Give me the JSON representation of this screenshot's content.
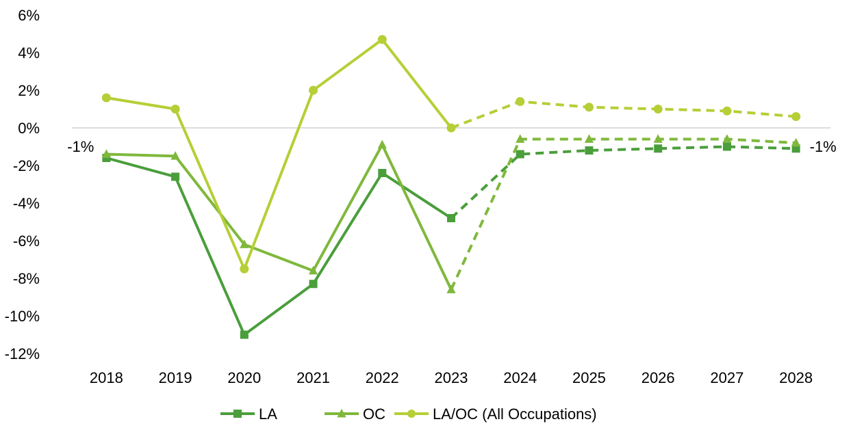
{
  "chart_data": {
    "type": "line",
    "title": "",
    "xlabel": "",
    "ylabel": "",
    "categories": [
      "2018",
      "2019",
      "2020",
      "2021",
      "2022",
      "2023",
      "2024",
      "2025",
      "2026",
      "2027",
      "2028"
    ],
    "ylim": [
      -12,
      6
    ],
    "yticks": [
      6,
      4,
      2,
      0,
      -2,
      -4,
      -6,
      -8,
      -10,
      -12
    ],
    "ytick_labels": [
      "6%",
      "4%",
      "2%",
      "0%",
      "-2%",
      "-4%",
      "-6%",
      "-8%",
      "-10%",
      "-12%"
    ],
    "grid": false,
    "zero_line": true,
    "projection_start_index": 5,
    "series": [
      {
        "name": "LA",
        "marker": "square",
        "color": "#4a9e3b",
        "values": [
          -1.6,
          -2.6,
          -11.0,
          -8.3,
          -2.4,
          -4.8,
          -1.4,
          -1.2,
          -1.1,
          -1.0,
          -1.1
        ]
      },
      {
        "name": "OC",
        "marker": "triangle",
        "color": "#7fb83c",
        "values": [
          -1.4,
          -1.5,
          -6.2,
          -7.6,
          -0.9,
          -8.6,
          -0.6,
          -0.6,
          -0.6,
          -0.6,
          -0.8
        ]
      },
      {
        "name": "LA/OC (All Occupations)",
        "marker": "circle",
        "color": "#b5cf36",
        "values": [
          1.6,
          1.0,
          -7.5,
          2.0,
          4.7,
          0.0,
          1.4,
          1.1,
          1.0,
          0.9,
          0.6
        ]
      }
    ],
    "annotations": [
      {
        "text": "-1%",
        "category": "2018",
        "side": "left"
      },
      {
        "text": "-1%",
        "category": "2028",
        "side": "right"
      }
    ],
    "legend": {
      "position": "bottom"
    }
  }
}
